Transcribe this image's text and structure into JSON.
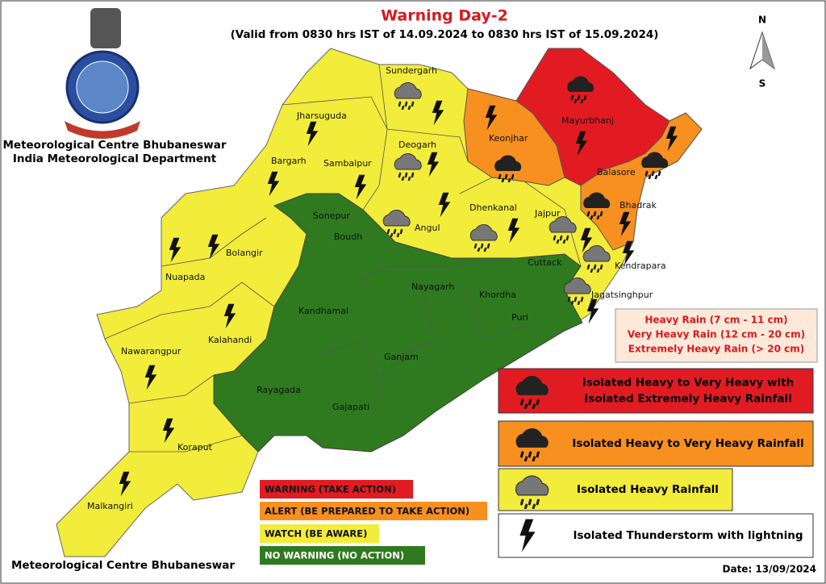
{
  "header": {
    "title": "Warning Day-2",
    "subtitle": "(Valid from 0830 hrs IST of 14.09.2024 to 0830 hrs IST of 15.09.2024)"
  },
  "organization": {
    "lines": [
      "Meteorological Centre Bhubaneswar",
      "India Meteorological Department"
    ]
  },
  "compass": {
    "north": "N",
    "south": "S"
  },
  "districts": [
    "Sundergarh",
    "Mayurbhanj",
    "Jharsuguda",
    "Keonjhar",
    "Deogarh",
    "Bargarh",
    "Sambalpur",
    "Balasore",
    "Bhadrak",
    "Sonepur",
    "Dhenkanal",
    "Jajpur",
    "Angul",
    "Boudh",
    "Bolangir",
    "Nuapada",
    "Cuttack",
    "Kendrapara",
    "Nayagarh",
    "Khordha",
    "Jagatsinghpur",
    "Kandhamal",
    "Puri",
    "Kalahandi",
    "Nawarangpur",
    "Ganjam",
    "Rayagada",
    "Gajapati",
    "Koraput",
    "Malkangiri"
  ],
  "rainfall_scale": [
    "Heavy Rain (7 cm - 11 cm)",
    "Very Heavy Rain (12 cm - 20 cm)",
    "Extremely Heavy Rain (> 20 cm)"
  ],
  "icon_legend": [
    {
      "lines": [
        "Isolated Heavy to Very Heavy with",
        "Isolated Extremely Heavy Rainfall"
      ],
      "color": "#e21b23"
    },
    {
      "lines": [
        "Isolated Heavy to Very Heavy Rainfall"
      ],
      "color": "#f7901e"
    },
    {
      "lines": [
        "Isolated Heavy Rainfall"
      ],
      "color": "#f2ec3a"
    },
    {
      "lines": [
        "Isolated Thunderstorm with lightning"
      ],
      "color": "#ffffff"
    }
  ],
  "warning_legend": [
    {
      "label": "WARNING (TAKE ACTION)",
      "color": "#e21b23"
    },
    {
      "label": "ALERT (BE PREPARED TO TAKE ACTION)",
      "color": "#f7901e"
    },
    {
      "label": "WATCH (BE AWARE)",
      "color": "#f2ec3a"
    },
    {
      "label": "NO WARNING (NO ACTION)",
      "color": "#2f7a1f"
    }
  ],
  "footer": {
    "left": "Meteorological Centre Bhubaneswar",
    "date": "Date: 13/09/2024"
  }
}
